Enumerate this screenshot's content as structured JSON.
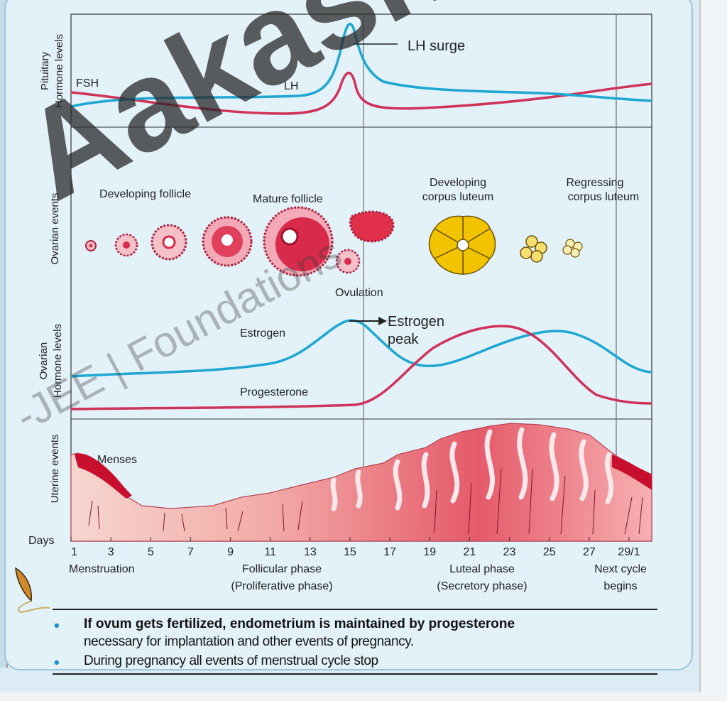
{
  "axes": {
    "pituitary": "Pituitary\nHormone levels",
    "ovarian_events": "Ovarian events",
    "ovarian_hormones": "Ovarian\nHormone levels",
    "uterine": "Uterine events",
    "days": "Days"
  },
  "pituitary": {
    "fsh": "FSH",
    "lh": "LH",
    "lh_surge": "LH surge"
  },
  "ovarian": {
    "developing_follicle": "Developing follicle",
    "mature_follicle": "Mature follicle",
    "ovulation": "Ovulation",
    "corpus_luteum_dev_1": "Developing",
    "corpus_luteum_dev_2": "corpus luteum",
    "corpus_luteum_reg_1": "Regressing",
    "corpus_luteum_reg_2": "corpus luteum"
  },
  "hormones": {
    "estrogen": "Estrogen",
    "estrogen_peak_1": "Estrogen",
    "estrogen_peak_2": "peak",
    "progesterone": "Progesterone"
  },
  "uterine": {
    "menses": "Menses"
  },
  "day_ticks": [
    "1",
    "3",
    "5",
    "7",
    "9",
    "11",
    "13",
    "15",
    "17",
    "19",
    "21",
    "23",
    "25",
    "27",
    "29/1"
  ],
  "phases": {
    "menstruation": "Menstruation",
    "follicular_1": "Follicular phase",
    "follicular_2": "(Proliferative phase)",
    "luteal_1": "Luteal phase",
    "luteal_2": "(Secretory phase)",
    "next_1": "Next cycle",
    "next_2": "begins"
  },
  "notes": {
    "note1_line1": "If ovum gets fertilized, endometrium is maintained by progesterone",
    "note1_line2": "necessary for implantation and other events of pregnancy.",
    "note2": "During pregnancy all events of menstrual cycle stop"
  },
  "watermark": "Aakash",
  "watermark_sub": "-JEE | Foundations",
  "colors": {
    "lh": "#1ea7d1",
    "fsh": "#d0335a",
    "estrogen": "#1ea7d1",
    "progesterone": "#d0335a",
    "menses": "#c8102e",
    "follicle": "#d82a4a",
    "corpus_luteum": "#f2c400"
  }
}
